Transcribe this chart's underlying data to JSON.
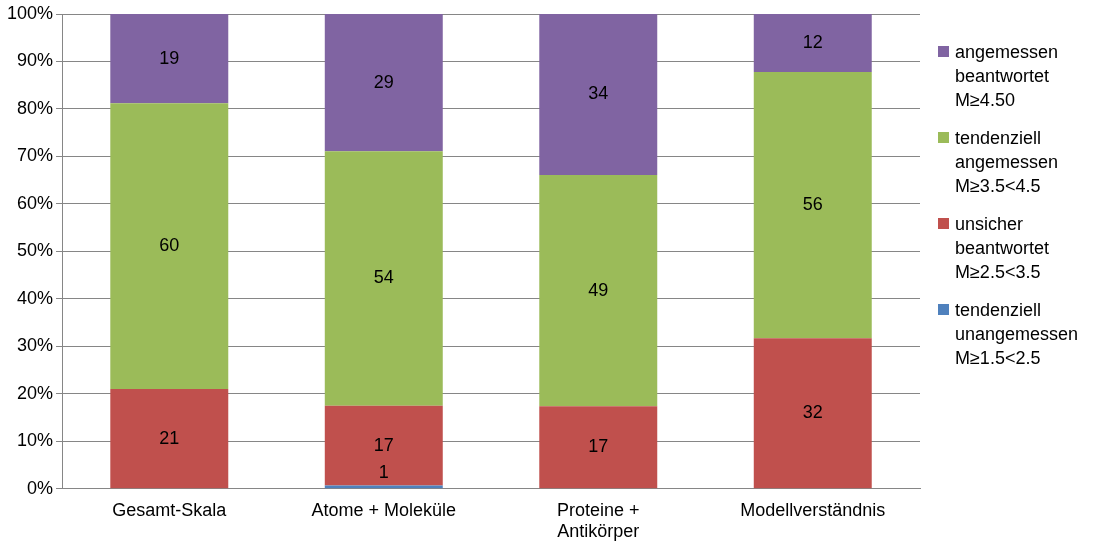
{
  "chart_data": {
    "type": "bar",
    "stacked": true,
    "categories": [
      "Gesamt-Skala",
      "Atome + Moleküle",
      "Proteine + Antikörper",
      "Modellverständnis"
    ],
    "series": [
      {
        "name": "tendenziell unangemessen M≥1.5<2.5",
        "color": "#4f81bd",
        "values": [
          null,
          0.7,
          null,
          null
        ],
        "value_labels": [
          null,
          "1",
          null,
          null
        ]
      },
      {
        "name": "unsicher beantwortet M≥2.5<3.5",
        "color": "#c0504d",
        "values": [
          21,
          16.8,
          17.4,
          31.7
        ],
        "value_labels": [
          "21",
          "17",
          "17",
          "32"
        ]
      },
      {
        "name": "tendenziell angemessen M≥3.5<4.5",
        "color": "#9bbb59",
        "values": [
          60.2,
          53.6,
          48.7,
          56.1
        ],
        "value_labels": [
          "60",
          "54",
          "49",
          "56"
        ]
      },
      {
        "name": "angemessen beantwortet M≥4.50",
        "color": "#8064a2",
        "values": [
          18.8,
          28.9,
          33.9,
          12.2
        ],
        "value_labels": [
          "19",
          "29",
          "34",
          "12"
        ]
      }
    ],
    "ylim": [
      0,
      100
    ],
    "yticks": [
      {
        "value": 0,
        "label": "0%"
      },
      {
        "value": 10,
        "label": "10%"
      },
      {
        "value": 20,
        "label": "20%"
      },
      {
        "value": 30,
        "label": "30%"
      },
      {
        "value": 40,
        "label": "40%"
      },
      {
        "value": 50,
        "label": "50%"
      },
      {
        "value": 60,
        "label": "60%"
      },
      {
        "value": 70,
        "label": "70%"
      },
      {
        "value": 80,
        "label": "80%"
      },
      {
        "value": 90,
        "label": "90%"
      },
      {
        "value": 100,
        "label": "100%"
      }
    ],
    "grid": "y",
    "legend": "right"
  }
}
